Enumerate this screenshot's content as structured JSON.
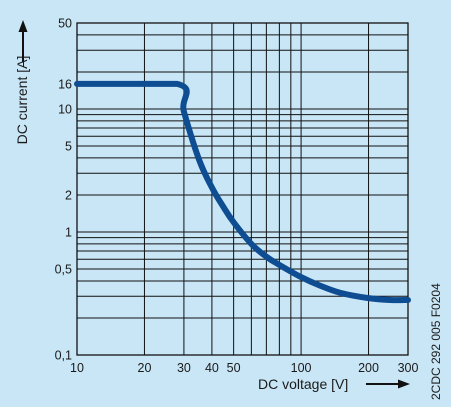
{
  "colors": {
    "background": "#c9e6f6",
    "grid": "#111111",
    "curve": "#0f4d92",
    "text": "#1a1a1a",
    "arrow": "#111111"
  },
  "chart_data": {
    "type": "line",
    "title": "",
    "xlabel": "DC voltage [V]",
    "ylabel": "DC current [A]",
    "x_scale": "log",
    "y_scale": "log",
    "xlim": [
      10,
      300
    ],
    "ylim": [
      0.1,
      50
    ],
    "grid": true,
    "x_ticks": [
      {
        "value": 10,
        "label": "10"
      },
      {
        "value": 20,
        "label": "20"
      },
      {
        "value": 30,
        "label": "30"
      },
      {
        "value": 40,
        "label": "40"
      },
      {
        "value": 50,
        "label": "50"
      },
      {
        "value": 100,
        "label": "100"
      },
      {
        "value": 200,
        "label": "200"
      },
      {
        "value": 300,
        "label": "300"
      }
    ],
    "y_ticks": [
      {
        "value": 0.1,
        "label": "0,1"
      },
      {
        "value": 0.5,
        "label": "0,5"
      },
      {
        "value": 1,
        "label": "1"
      },
      {
        "value": 2,
        "label": "2"
      },
      {
        "value": 5,
        "label": "5"
      },
      {
        "value": 10,
        "label": "10"
      },
      {
        "value": 16,
        "label": "16"
      },
      {
        "value": 50,
        "label": "50"
      }
    ],
    "x_gridlines": [
      10,
      20,
      30,
      40,
      50,
      60,
      70,
      80,
      90,
      100,
      200,
      300
    ],
    "y_gridlines": [
      0.1,
      0.2,
      0.3,
      0.4,
      0.5,
      0.6,
      0.7,
      0.8,
      0.9,
      1,
      2,
      3,
      4,
      5,
      6,
      7,
      8,
      9,
      10,
      20,
      30,
      40,
      50
    ],
    "series": [
      {
        "x": [
          10,
          28,
          30,
          35,
          40,
          45,
          50,
          60,
          70,
          80,
          100,
          120,
          150,
          200,
          250,
          300
        ],
        "y": [
          16,
          16,
          9.5,
          3.9,
          2.3,
          1.6,
          1.2,
          0.8,
          0.63,
          0.54,
          0.43,
          0.37,
          0.32,
          0.29,
          0.28,
          0.28
        ]
      }
    ]
  },
  "document_code": "2CDC 292 005 F0204"
}
